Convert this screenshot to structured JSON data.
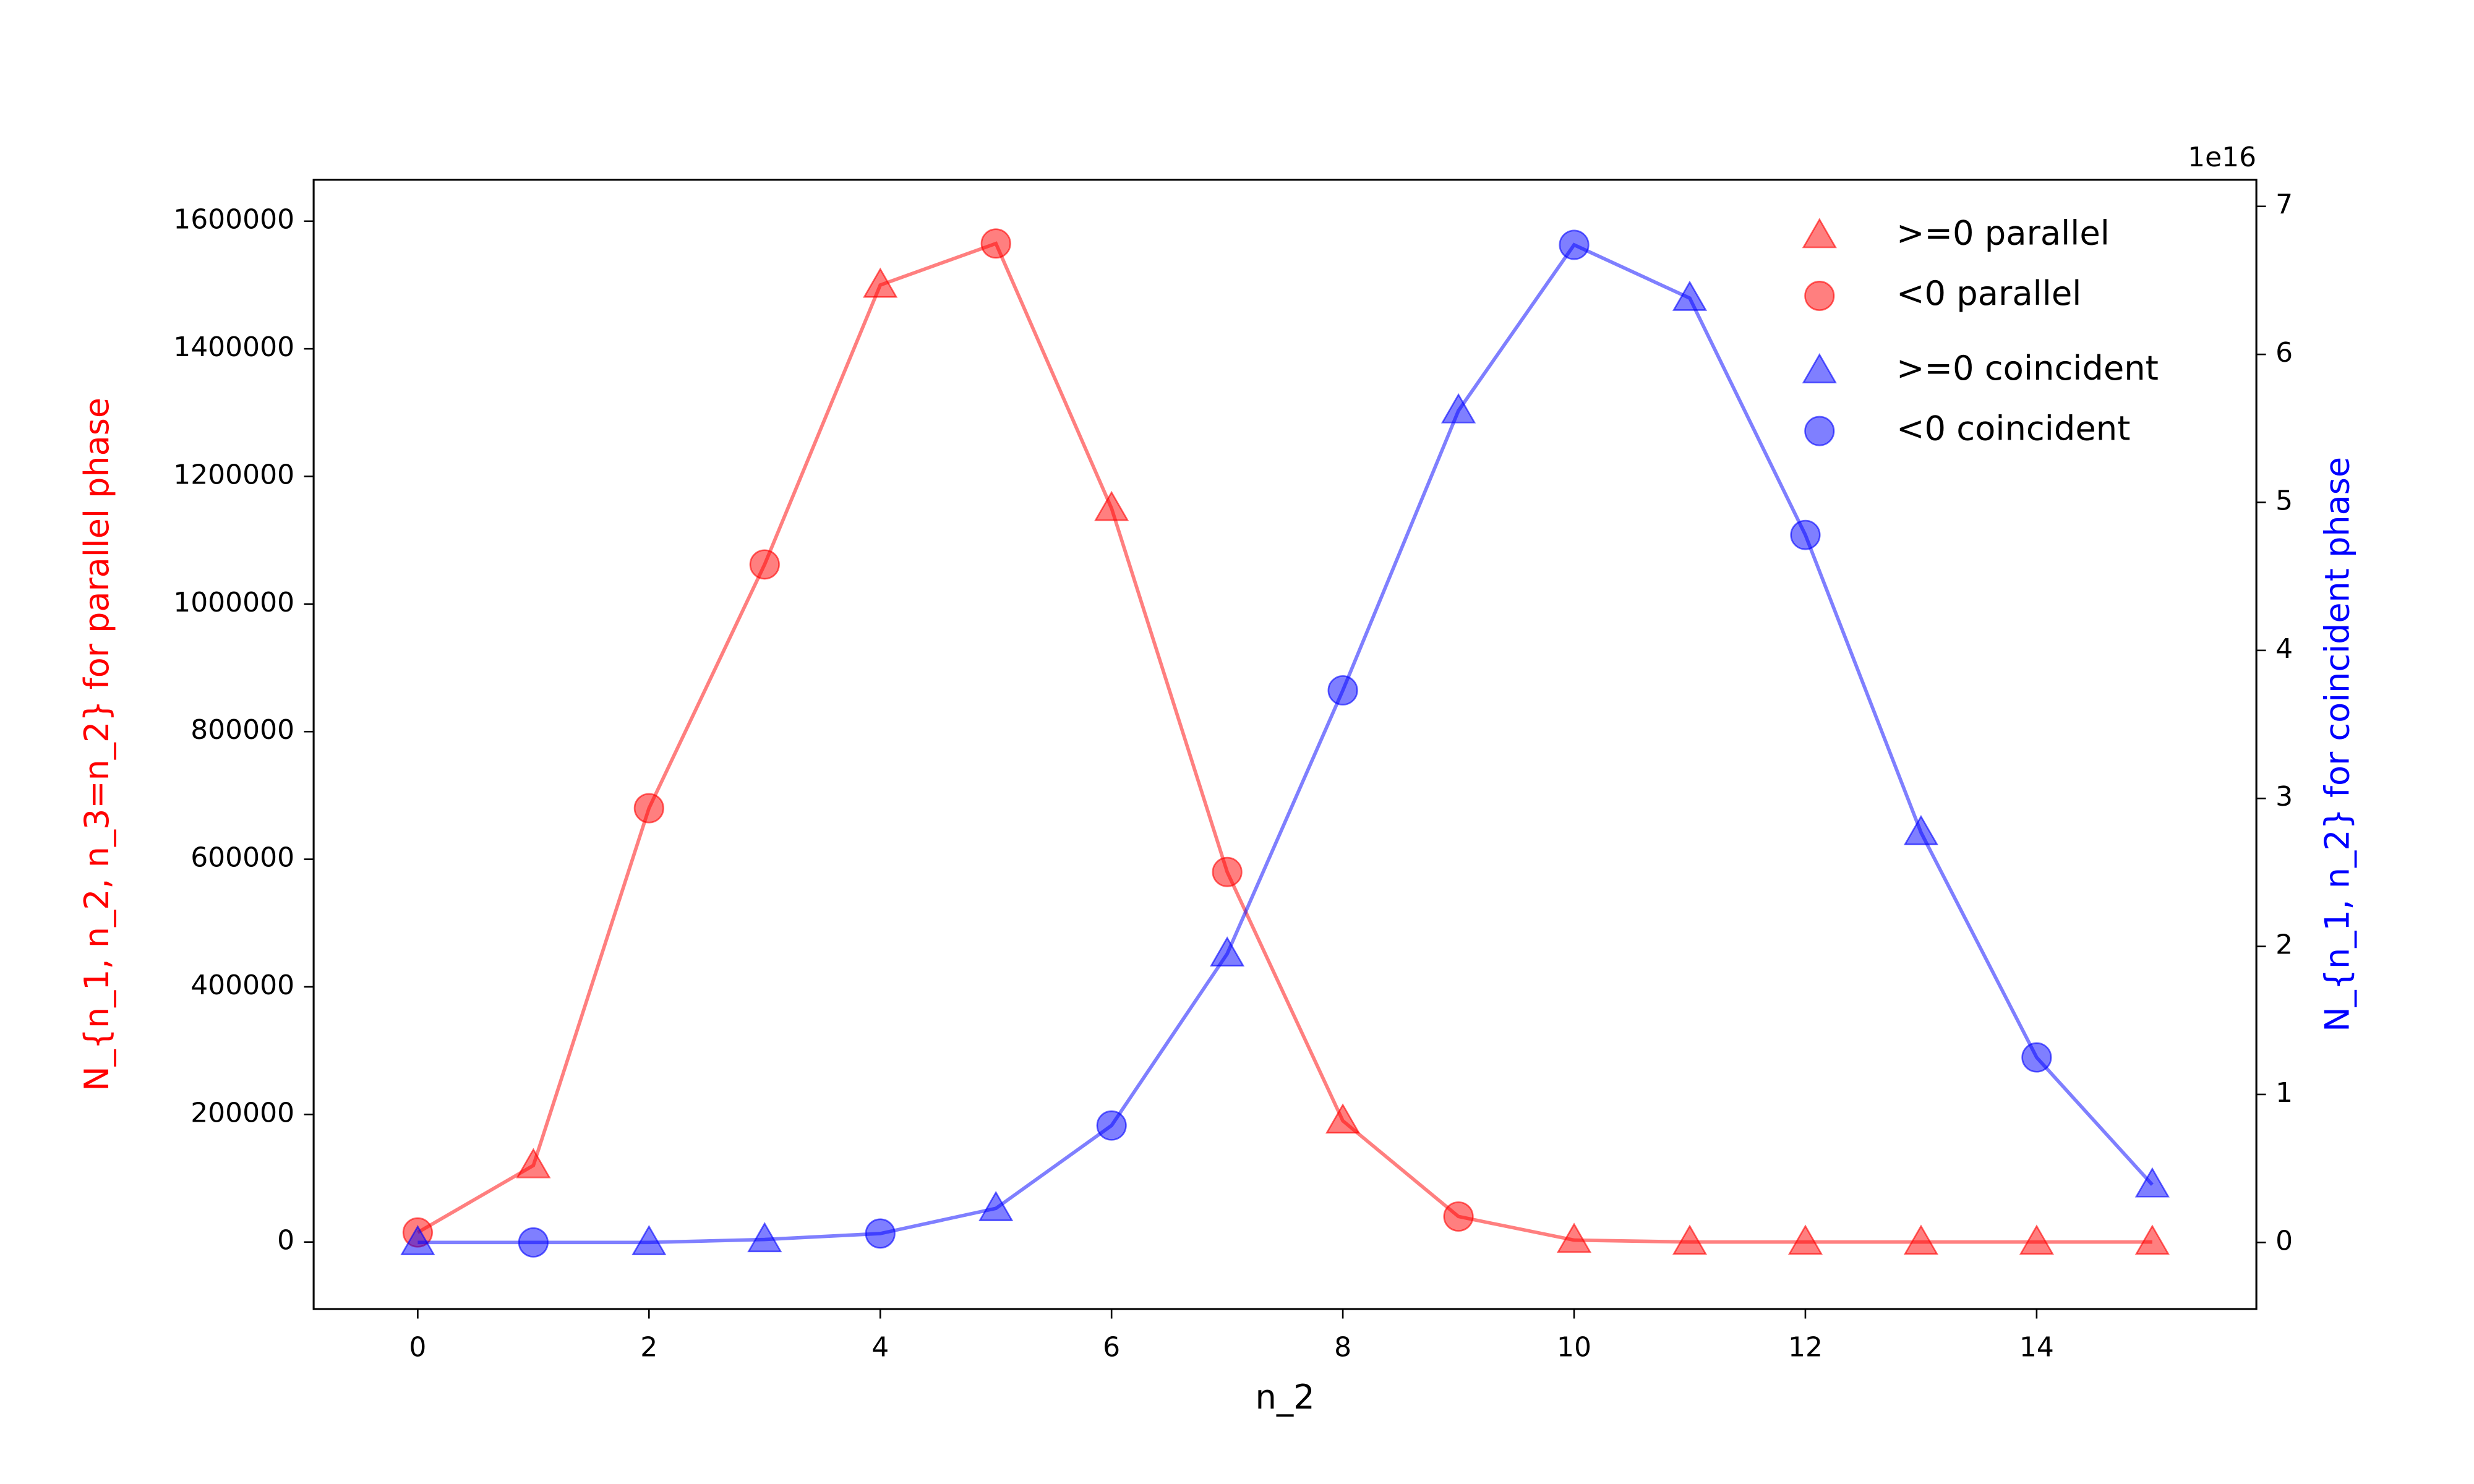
{
  "chart_data": {
    "type": "line",
    "x": [
      0,
      1,
      2,
      3,
      4,
      5,
      6,
      7,
      8,
      9,
      10,
      11,
      12,
      13,
      14,
      15
    ],
    "xlabel": "n_2",
    "ylabel": "N_{n_1, n_2, n_3=n_2} for parallel phase",
    "y2label": "N_{n_1, n_2} for coincident phase",
    "y2offset": "1e16",
    "xlim": [
      -0.9,
      15.9
    ],
    "xticks": [
      0,
      2,
      4,
      6,
      8,
      10,
      12,
      14
    ],
    "ylim": [
      -105000,
      1665000
    ],
    "yticks": [
      0,
      200000,
      400000,
      600000,
      800000,
      1000000,
      1200000,
      1400000,
      1600000
    ],
    "y2lim": [
      -0.45,
      7.18
    ],
    "y2ticks": [
      0,
      1,
      2,
      3,
      4,
      5,
      6,
      7
    ],
    "series": [
      {
        "color": "#ff0000",
        "axis": "y",
        "values": [
          15000,
          120000,
          680000,
          1062000,
          1500000,
          1565000,
          1150000,
          580000,
          190000,
          40000,
          3000,
          0,
          0,
          0,
          0,
          0
        ],
        "markers": [
          "circle",
          "triangle",
          "circle",
          "circle",
          "triangle",
          "circle",
          "triangle",
          "circle",
          "triangle",
          "circle",
          "triangle",
          "triangle",
          "triangle",
          "triangle",
          "triangle",
          "triangle"
        ]
      },
      {
        "color": "#0000ff",
        "axis": "y2",
        "values": [
          0,
          0,
          0,
          0.02,
          0.06,
          0.23,
          0.79,
          1.95,
          3.73,
          5.62,
          6.74,
          6.38,
          4.78,
          2.77,
          1.25,
          0.39
        ],
        "markers": [
          "triangle",
          "circle",
          "triangle",
          "triangle",
          "circle",
          "triangle",
          "circle",
          "triangle",
          "circle",
          "triangle",
          "circle",
          "triangle",
          "circle",
          "triangle",
          "circle",
          "triangle"
        ]
      }
    ],
    "legend": [
      {
        "name": ">=0 parallel",
        "series": 0,
        "marker": "triangle"
      },
      {
        "name": "<0 parallel",
        "series": 0,
        "marker": "circle"
      },
      {
        "name": ">=0 coincident",
        "series": 1,
        "marker": "triangle"
      },
      {
        "name": "<0 coincident",
        "series": 1,
        "marker": "circle"
      }
    ],
    "legend_loc": "upper right"
  }
}
